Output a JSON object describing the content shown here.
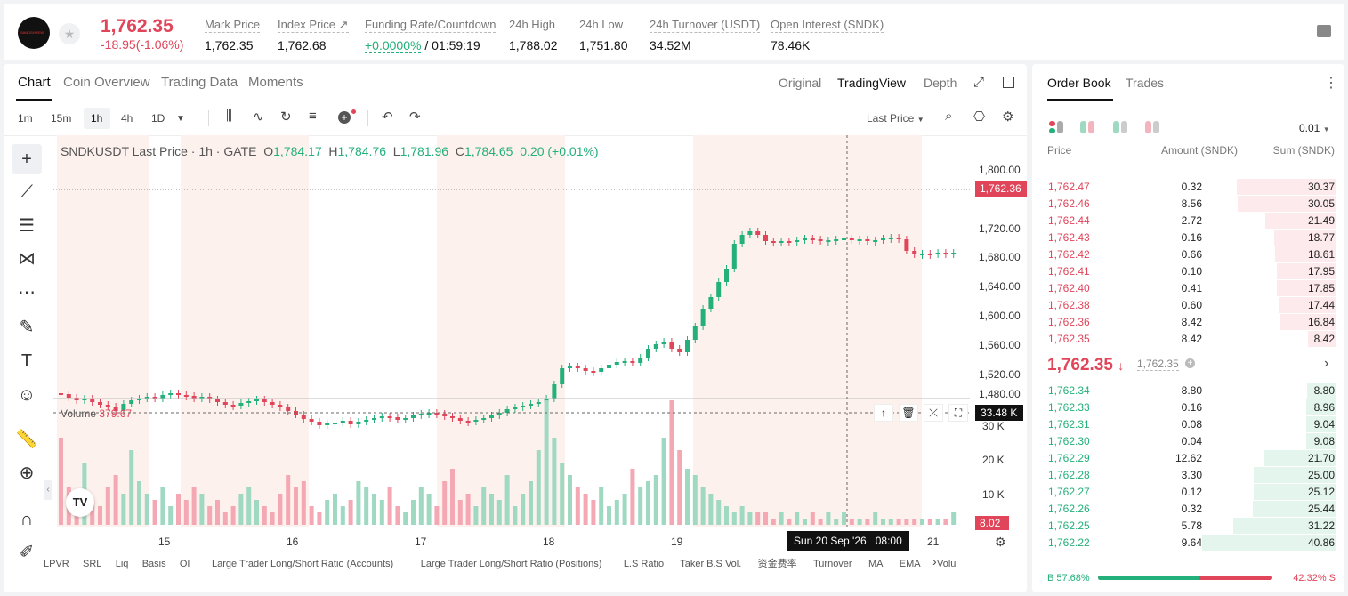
{
  "header": {
    "logo_text": "SANDSHREW",
    "last_price": "1,762.35",
    "change": "-18.95(-1.06%)",
    "stats": [
      {
        "label": "Mark Price",
        "value": "1,762.35"
      },
      {
        "label": "Index Price ↗",
        "value": "1,762.68"
      },
      {
        "label": "Funding Rate/Countdown",
        "value_rate": "+0.0000%",
        "value_countdown": " / 01:59:19"
      },
      {
        "label": "24h High",
        "value": "1,788.02"
      },
      {
        "label": "24h Low",
        "value": "1,751.80"
      },
      {
        "label": "24h Turnover (USDT)",
        "value": "34.52M"
      },
      {
        "label": "Open Interest (SNDK)",
        "value": "78.46K"
      }
    ]
  },
  "chart_panel": {
    "tabs": [
      "Chart",
      "Coin Overview",
      "Trading Data",
      "Moments"
    ],
    "views": [
      "Original",
      "TradingView",
      "Depth"
    ],
    "timeframes": [
      "1m",
      "15m",
      "1h",
      "4h",
      "1D"
    ],
    "price_type": "Last Price",
    "legend": {
      "symbol": "SNDKUSDT Last Price · 1h · GATE",
      "o": "1,784.17",
      "h": "1,784.76",
      "l": "1,781.96",
      "c": "1,784.65",
      "chg": "0.20 (+0.01%)"
    },
    "volume_label": "Volume",
    "volume_value": "379.67",
    "price_axis": [
      "1,800.00",
      "1,760.00",
      "1,720.00",
      "1,680.00",
      "1,640.00",
      "1,600.00",
      "1,560.00",
      "1,520.00",
      "1,480.00"
    ],
    "current_price_tag": "1,762.36",
    "volume_axis": [
      "30 K",
      "20 K",
      "10 K"
    ],
    "volume_cursor_tag": "33.48 K",
    "volume_last_tag": "8.02",
    "time_axis": [
      "15",
      "16",
      "17",
      "18",
      "19",
      "21"
    ],
    "cursor_time": "Sun 20 Sep '26",
    "cursor_hour": "08:00",
    "indicators": [
      "LPVR",
      "SRL",
      "Liq",
      "Basis",
      "OI",
      "Large Trader Long/Short Ratio (Accounts)",
      "Large Trader Long/Short Ratio (Positions)",
      "L.S Ratio",
      "Taker B.S Vol.",
      "资金费率",
      "Turnover",
      "MA",
      "EMA",
      "Volu"
    ]
  },
  "order_book": {
    "tabs": [
      "Order Book",
      "Trades"
    ],
    "precision": "0.01",
    "headers": {
      "price": "Price",
      "amount": "Amount (SNDK)",
      "sum": "Sum (SNDK)"
    },
    "asks": [
      {
        "price": "1,762.47",
        "amount": "0.32",
        "sum": "30.37"
      },
      {
        "price": "1,762.46",
        "amount": "8.56",
        "sum": "30.05"
      },
      {
        "price": "1,762.44",
        "amount": "2.72",
        "sum": "21.49"
      },
      {
        "price": "1,762.43",
        "amount": "0.16",
        "sum": "18.77"
      },
      {
        "price": "1,762.42",
        "amount": "0.66",
        "sum": "18.61"
      },
      {
        "price": "1,762.41",
        "amount": "0.10",
        "sum": "17.95"
      },
      {
        "price": "1,762.40",
        "amount": "0.41",
        "sum": "17.85"
      },
      {
        "price": "1,762.38",
        "amount": "0.60",
        "sum": "17.44"
      },
      {
        "price": "1,762.36",
        "amount": "8.42",
        "sum": "16.84"
      },
      {
        "price": "1,762.35",
        "amount": "8.42",
        "sum": "8.42"
      }
    ],
    "mid_price": "1,762.35",
    "mid_mark": "1,762.35",
    "bids": [
      {
        "price": "1,762.34",
        "amount": "8.80",
        "sum": "8.80"
      },
      {
        "price": "1,762.33",
        "amount": "0.16",
        "sum": "8.96"
      },
      {
        "price": "1,762.31",
        "amount": "0.08",
        "sum": "9.04"
      },
      {
        "price": "1,762.30",
        "amount": "0.04",
        "sum": "9.08"
      },
      {
        "price": "1,762.29",
        "amount": "12.62",
        "sum": "21.70"
      },
      {
        "price": "1,762.28",
        "amount": "3.30",
        "sum": "25.00"
      },
      {
        "price": "1,762.27",
        "amount": "0.12",
        "sum": "25.12"
      },
      {
        "price": "1,762.26",
        "amount": "0.32",
        "sum": "25.44"
      },
      {
        "price": "1,762.25",
        "amount": "5.78",
        "sum": "31.22"
      },
      {
        "price": "1,762.22",
        "amount": "9.64",
        "sum": "40.86"
      }
    ],
    "buy_ratio": "B 57.68%",
    "sell_ratio": "42.32% S",
    "buy_fraction": 0.5768
  },
  "colors": {
    "up": "#23b07a",
    "down": "#e0455a"
  }
}
